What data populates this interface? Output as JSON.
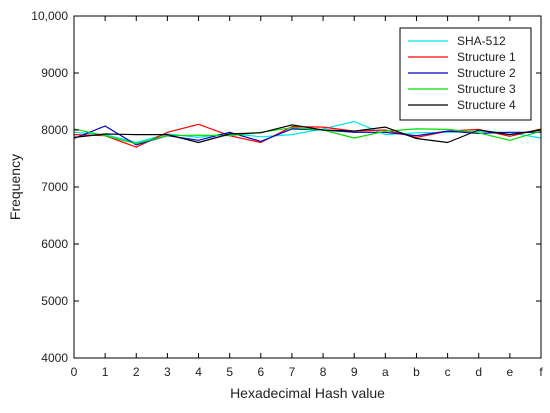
{
  "chart_data": {
    "type": "line",
    "xlabel": "Hexadecimal Hash value",
    "ylabel": "Frequency",
    "ylim": [
      4000,
      10000
    ],
    "yticks": [
      4000,
      5000,
      6000,
      7000,
      8000,
      9000,
      10000
    ],
    "ytick_labels": [
      "4000",
      "5000",
      "6000",
      "7000",
      "8000",
      "9000",
      "10,000"
    ],
    "categories": [
      "0",
      "1",
      "2",
      "3",
      "4",
      "5",
      "6",
      "7",
      "8",
      "9",
      "a",
      "b",
      "c",
      "d",
      "e",
      "f"
    ],
    "grid": false,
    "legend_position": "top-right",
    "series": [
      {
        "name": "SHA-512",
        "color": "#00e5e5",
        "values": [
          7960,
          7920,
          7780,
          7930,
          7870,
          7940,
          7880,
          7920,
          8020,
          8150,
          7920,
          7950,
          7960,
          7980,
          7950,
          7860
        ]
      },
      {
        "name": "Structure 1",
        "color": "#ff0000",
        "values": [
          7920,
          7900,
          7700,
          7960,
          8100,
          7900,
          7780,
          8060,
          8050,
          7980,
          8000,
          7870,
          7980,
          8010,
          7890,
          8020
        ]
      },
      {
        "name": "Structure 2",
        "color": "#0000cc",
        "values": [
          7850,
          8070,
          7740,
          7900,
          7820,
          7960,
          7800,
          8020,
          8000,
          7960,
          7960,
          7900,
          7980,
          7940,
          7960,
          7960
        ]
      },
      {
        "name": "Structure 3",
        "color": "#00dd00",
        "values": [
          8020,
          7900,
          7760,
          7900,
          7910,
          7900,
          7960,
          8040,
          8000,
          7860,
          7980,
          8020,
          8010,
          7950,
          7820,
          7980
        ]
      },
      {
        "name": "Structure 4",
        "color": "#000000",
        "values": [
          7870,
          7930,
          7920,
          7920,
          7780,
          7930,
          7950,
          8090,
          8000,
          7980,
          8050,
          7850,
          7780,
          8000,
          7920,
          8000
        ]
      }
    ]
  }
}
